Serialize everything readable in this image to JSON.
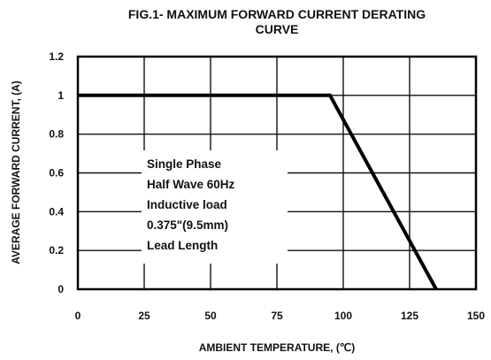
{
  "chart_data": {
    "type": "line",
    "title_lines": [
      "FIG.1- MAXIMUM FORWARD CURRENT DERATING",
      "CURVE"
    ],
    "xlabel": "AMBIENT TEMPERATURE, (℃)",
    "ylabel": "AVERAGE FORWARD CURRENT, (A)",
    "xlim": [
      0,
      150
    ],
    "ylim": [
      0,
      1.2
    ],
    "x_ticks": [
      0,
      25,
      50,
      75,
      100,
      125,
      150
    ],
    "x_tick_labels": [
      "0",
      "25",
      "50",
      "75",
      "100",
      "125",
      "150"
    ],
    "y_ticks": [
      0,
      0.2,
      0.4,
      0.6,
      0.8,
      1,
      1.2
    ],
    "y_tick_labels": [
      "0",
      "0.2",
      "0.4",
      "0.6",
      "0.8",
      "1",
      "1.2"
    ],
    "grid": true,
    "series": [
      {
        "x": [
          0,
          95,
          135
        ],
        "y": [
          1,
          1,
          0
        ]
      }
    ],
    "annotation_lines": [
      "Single Phase",
      "Half Wave 60Hz",
      "Inductive load",
      "0.375\"(9.5mm)",
      "Lead Length"
    ]
  }
}
